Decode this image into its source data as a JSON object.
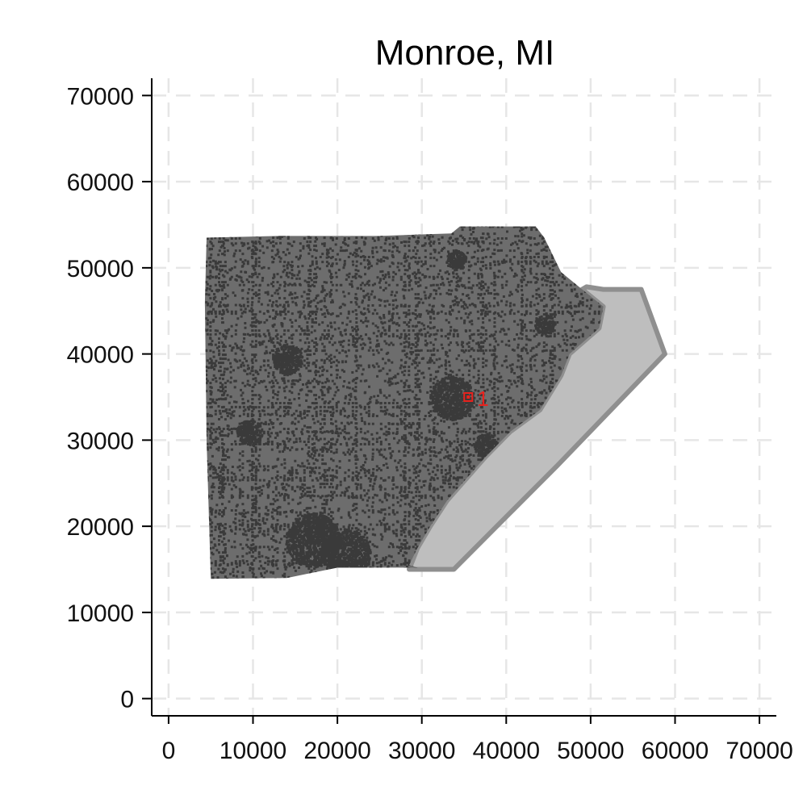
{
  "chart_data": {
    "type": "map",
    "title": "Monroe, MI",
    "xlabel": "",
    "ylabel": "",
    "xlim": [
      -2000,
      72000
    ],
    "ylim": [
      -2000,
      72000
    ],
    "x_ticks": [
      0,
      10000,
      20000,
      30000,
      40000,
      50000,
      60000,
      70000
    ],
    "y_ticks": [
      0,
      10000,
      20000,
      30000,
      40000,
      50000,
      60000,
      70000
    ],
    "x_tick_labels": [
      "0",
      "10000",
      "20000",
      "30000",
      "40000",
      "50000",
      "60000",
      "70000"
    ],
    "y_tick_labels": [
      "0",
      "10000",
      "20000",
      "30000",
      "40000",
      "50000",
      "60000",
      "70000"
    ],
    "grid": true,
    "colors": {
      "land": "#6d6d6d",
      "water": "#bebebe",
      "shore": "#8f8f8f",
      "urban": "#3a3a3a",
      "marker": "#e8221d",
      "grid": "#e6e6e6"
    },
    "land_outline": [
      [
        4500,
        53500
      ],
      [
        13000,
        53700
      ],
      [
        25000,
        53700
      ],
      [
        33500,
        54000
      ],
      [
        34500,
        54800
      ],
      [
        43500,
        54800
      ],
      [
        44500,
        53500
      ],
      [
        46500,
        49500
      ],
      [
        49000,
        47500
      ],
      [
        51500,
        45500
      ],
      [
        51000,
        43000
      ],
      [
        47500,
        40000
      ],
      [
        46500,
        37500
      ],
      [
        44000,
        33500
      ],
      [
        40500,
        31000
      ],
      [
        37500,
        28000
      ],
      [
        33000,
        23000
      ],
      [
        31000,
        20000
      ],
      [
        29500,
        17500
      ],
      [
        28500,
        15500
      ],
      [
        29500,
        15200
      ],
      [
        20000,
        15200
      ],
      [
        14000,
        14000
      ],
      [
        5000,
        13900
      ],
      [
        4500,
        30000
      ],
      [
        4300,
        46000
      ]
    ],
    "water_outline": [
      [
        51500,
        47500
      ],
      [
        56000,
        47500
      ],
      [
        58800,
        40000
      ],
      [
        46000,
        27000
      ],
      [
        33800,
        15000
      ],
      [
        28500,
        15000
      ],
      [
        29500,
        17500
      ],
      [
        31000,
        20000
      ],
      [
        33000,
        23000
      ],
      [
        37500,
        28000
      ],
      [
        40500,
        31000
      ],
      [
        44000,
        33500
      ],
      [
        46500,
        37500
      ],
      [
        47500,
        40000
      ],
      [
        51000,
        43000
      ],
      [
        51500,
        45500
      ],
      [
        49000,
        47500
      ],
      [
        49500,
        47800
      ]
    ],
    "urban_clusters": [
      {
        "x": 33500,
        "y": 35000,
        "r": 2600
      },
      {
        "x": 14000,
        "y": 39500,
        "r": 1800
      },
      {
        "x": 9500,
        "y": 31000,
        "r": 1500
      },
      {
        "x": 17000,
        "y": 18500,
        "r": 3200
      },
      {
        "x": 21000,
        "y": 17000,
        "r": 2800
      },
      {
        "x": 34000,
        "y": 51000,
        "r": 1200
      },
      {
        "x": 44500,
        "y": 43500,
        "r": 1200
      },
      {
        "x": 37500,
        "y": 29500,
        "r": 1400
      }
    ],
    "markers": [
      {
        "label": "1",
        "x": 35500,
        "y": 35000
      }
    ]
  }
}
